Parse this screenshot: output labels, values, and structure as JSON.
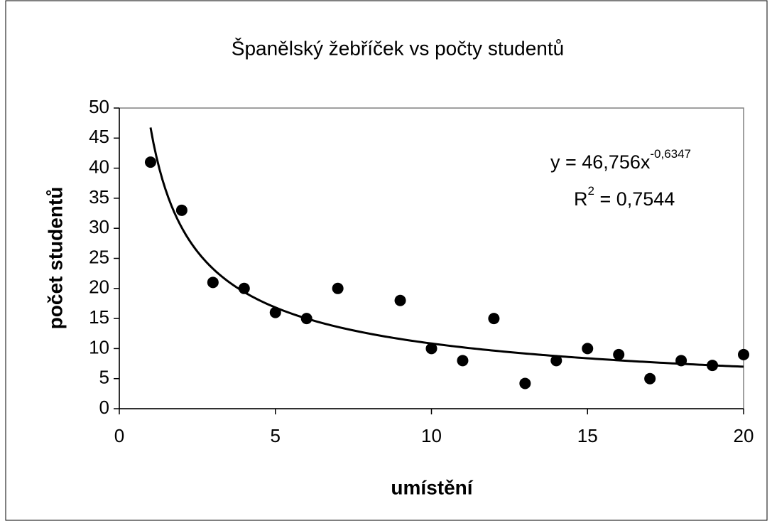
{
  "chart_data": {
    "type": "scatter",
    "title": "Španělský žebříček vs počty studentů",
    "x_label": "umístění",
    "y_label": "počet studentů",
    "x": [
      1,
      2,
      3,
      4,
      5,
      6,
      7,
      9,
      10,
      11,
      12,
      13,
      14,
      15,
      16,
      17,
      18,
      19,
      20
    ],
    "values": [
      41,
      33,
      21,
      20,
      16,
      15,
      20,
      18,
      10,
      8,
      15,
      4.2,
      8,
      10,
      9,
      5,
      8,
      7.2,
      9
    ],
    "color": "#000000",
    "xlim": [
      0,
      20
    ],
    "xticks": [
      0,
      5,
      10,
      15,
      20
    ],
    "ylim": [
      0,
      50
    ],
    "yticks": [
      0,
      5,
      10,
      15,
      20,
      25,
      30,
      35,
      40,
      45,
      50
    ],
    "grid": false,
    "trendline": {
      "coefficient": 46.756,
      "exponent": -0.6347,
      "r_squared": 0.7544,
      "equation_label": "y = 46,756x",
      "exponent_label": "-0,6347",
      "r_label": "R",
      "r_power_label": "2",
      "r_value_label": " = 0,7544"
    }
  }
}
